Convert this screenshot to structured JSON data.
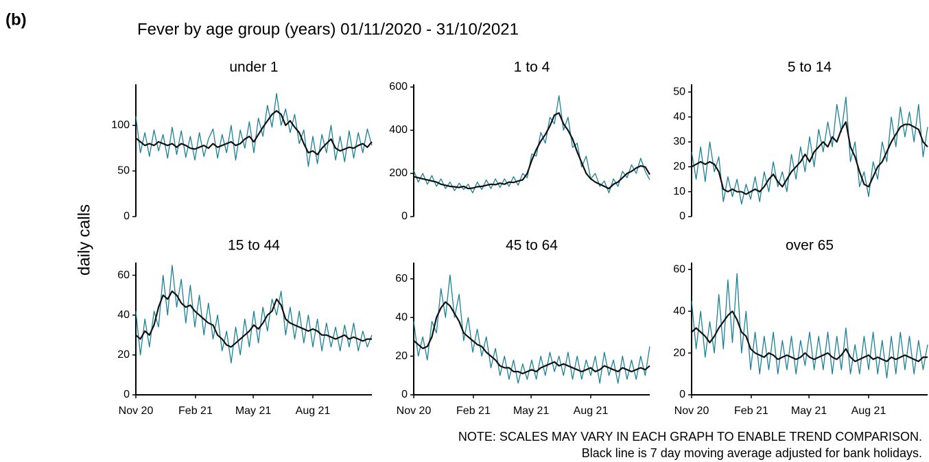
{
  "panel_label": "(b)",
  "title": "Fever by age group (years) 01/11/2020 - 31/10/2021",
  "ylabel": "daily calls",
  "notes": [
    "NOTE: SCALES MAY VARY IN EACH GRAPH TO ENABLE TREND COMPARISON.",
    "Black line is 7 day moving average adjusted for bank holidays."
  ],
  "chart_data": [
    {
      "type": "line",
      "title": "under 1",
      "xlim": [
        0,
        364
      ],
      "ylim": [
        0,
        142
      ],
      "yticks": [
        0,
        50,
        100
      ],
      "x": [
        0,
        7,
        14,
        21,
        28,
        35,
        42,
        49,
        56,
        63,
        70,
        77,
        84,
        91,
        98,
        105,
        112,
        119,
        126,
        133,
        140,
        147,
        154,
        161,
        168,
        175,
        182,
        189,
        196,
        203,
        210,
        217,
        224,
        231,
        238,
        245,
        252,
        259,
        266,
        273,
        280,
        287,
        294,
        301,
        308,
        315,
        322,
        329,
        336,
        343,
        350,
        357,
        364
      ],
      "series": [
        {
          "color": "#1b8096",
          "values": [
            110,
            70,
            92,
            66,
            95,
            72,
            90,
            64,
            98,
            68,
            94,
            65,
            88,
            62,
            92,
            66,
            85,
            96,
            64,
            90,
            70,
            100,
            62,
            95,
            75,
            104,
            70,
            108,
            88,
            122,
            98,
            135,
            100,
            118,
            92,
            112,
            80,
            95,
            55,
            88,
            58,
            90,
            70,
            100,
            62,
            88,
            60,
            94,
            64,
            92,
            70,
            96,
            78
          ]
        },
        {
          "color": "#111111",
          "values": [
            86,
            82,
            78,
            80,
            78,
            82,
            80,
            78,
            80,
            76,
            80,
            78,
            75,
            74,
            76,
            78,
            75,
            80,
            76,
            78,
            80,
            82,
            78,
            80,
            85,
            88,
            82,
            90,
            98,
            105,
            112,
            116,
            112,
            100,
            105,
            98,
            92,
            80,
            70,
            72,
            68,
            75,
            80,
            85,
            75,
            72,
            74,
            76,
            75,
            78,
            80,
            76,
            82
          ]
        }
      ]
    },
    {
      "type": "line",
      "title": "1 to 4",
      "xlim": [
        0,
        364
      ],
      "ylim": [
        0,
        600
      ],
      "yticks": [
        0,
        200,
        400,
        600
      ],
      "x": [
        0,
        7,
        14,
        21,
        28,
        35,
        42,
        49,
        56,
        63,
        70,
        77,
        84,
        91,
        98,
        105,
        112,
        119,
        126,
        133,
        140,
        147,
        154,
        161,
        168,
        175,
        182,
        189,
        196,
        203,
        210,
        217,
        224,
        231,
        238,
        245,
        252,
        259,
        266,
        273,
        280,
        287,
        294,
        301,
        308,
        315,
        322,
        329,
        336,
        343,
        350,
        357,
        364
      ],
      "series": [
        {
          "color": "#1b8096",
          "values": [
            215,
            160,
            200,
            150,
            190,
            140,
            175,
            130,
            160,
            120,
            155,
            125,
            150,
            110,
            160,
            125,
            170,
            130,
            175,
            135,
            175,
            140,
            185,
            145,
            200,
            180,
            290,
            280,
            390,
            340,
            460,
            430,
            560,
            400,
            460,
            320,
            340,
            230,
            280,
            175,
            200,
            140,
            165,
            110,
            175,
            140,
            210,
            180,
            240,
            200,
            270,
            210,
            170
          ]
        },
        {
          "color": "#111111",
          "values": [
            185,
            180,
            175,
            170,
            165,
            160,
            150,
            145,
            140,
            138,
            135,
            140,
            130,
            132,
            138,
            140,
            145,
            150,
            148,
            155,
            150,
            160,
            158,
            165,
            170,
            200,
            260,
            310,
            350,
            380,
            420,
            470,
            480,
            430,
            400,
            360,
            300,
            250,
            200,
            175,
            160,
            150,
            140,
            130,
            150,
            160,
            180,
            200,
            210,
            225,
            235,
            230,
            195
          ]
        }
      ]
    },
    {
      "type": "line",
      "title": "5 to 14",
      "xlim": [
        0,
        364
      ],
      "ylim": [
        0,
        52
      ],
      "yticks": [
        0,
        10,
        20,
        30,
        40,
        50
      ],
      "x": [
        0,
        7,
        14,
        21,
        28,
        35,
        42,
        49,
        56,
        63,
        70,
        77,
        84,
        91,
        98,
        105,
        112,
        119,
        126,
        133,
        140,
        147,
        154,
        161,
        168,
        175,
        182,
        189,
        196,
        203,
        210,
        217,
        224,
        231,
        238,
        245,
        252,
        259,
        266,
        273,
        280,
        287,
        294,
        301,
        308,
        315,
        322,
        329,
        336,
        343,
        350,
        357,
        364
      ],
      "series": [
        {
          "color": "#1b8096",
          "values": [
            26,
            15,
            28,
            14,
            30,
            18,
            24,
            6,
            16,
            8,
            15,
            5,
            13,
            7,
            16,
            6,
            18,
            10,
            22,
            12,
            18,
            10,
            25,
            15,
            28,
            18,
            32,
            20,
            35,
            26,
            38,
            28,
            45,
            34,
            48,
            22,
            30,
            12,
            18,
            8,
            22,
            15,
            30,
            22,
            40,
            28,
            44,
            32,
            42,
            30,
            45,
            24,
            36
          ]
        },
        {
          "color": "#111111",
          "values": [
            20,
            21,
            22,
            21,
            22,
            21,
            18,
            11,
            10,
            11,
            10,
            10,
            9,
            10,
            11,
            10,
            12,
            15,
            17,
            14,
            12,
            15,
            18,
            20,
            22,
            25,
            22,
            26,
            28,
            30,
            28,
            32,
            30,
            35,
            38,
            28,
            24,
            18,
            13,
            12,
            16,
            20,
            22,
            26,
            30,
            33,
            36,
            37,
            37,
            36,
            35,
            30,
            28
          ]
        }
      ]
    },
    {
      "type": "line",
      "title": "15 to 44",
      "xlim": [
        0,
        364
      ],
      "ylim": [
        0,
        65
      ],
      "yticks": [
        0,
        20,
        40,
        60
      ],
      "xticks": [
        {
          "value": 0,
          "label": "Nov 20"
        },
        {
          "value": 92,
          "label": "Feb 21"
        },
        {
          "value": 181,
          "label": "May 21"
        },
        {
          "value": 273,
          "label": "Aug 21"
        }
      ],
      "x": [
        0,
        7,
        14,
        21,
        28,
        35,
        42,
        49,
        56,
        63,
        70,
        77,
        84,
        91,
        98,
        105,
        112,
        119,
        126,
        133,
        140,
        147,
        154,
        161,
        168,
        175,
        182,
        189,
        196,
        203,
        210,
        217,
        224,
        231,
        238,
        245,
        252,
        259,
        266,
        273,
        280,
        287,
        294,
        301,
        308,
        315,
        322,
        329,
        336,
        343,
        350,
        357,
        364
      ],
      "series": [
        {
          "color": "#1b8096",
          "values": [
            42,
            20,
            38,
            24,
            42,
            34,
            60,
            40,
            65,
            44,
            58,
            36,
            55,
            34,
            50,
            30,
            46,
            28,
            40,
            22,
            32,
            16,
            34,
            20,
            38,
            24,
            42,
            26,
            44,
            32,
            48,
            40,
            52,
            30,
            44,
            28,
            42,
            26,
            40,
            24,
            38,
            22,
            36,
            24,
            34,
            22,
            35,
            24,
            36,
            22,
            32,
            24,
            30
          ]
        },
        {
          "color": "#111111",
          "values": [
            30,
            28,
            32,
            30,
            35,
            44,
            50,
            48,
            52,
            50,
            46,
            44,
            45,
            42,
            40,
            38,
            36,
            35,
            30,
            28,
            25,
            24,
            26,
            28,
            30,
            32,
            35,
            33,
            36,
            40,
            42,
            48,
            45,
            38,
            36,
            35,
            34,
            33,
            32,
            33,
            32,
            30,
            30,
            29,
            28,
            29,
            30,
            28,
            29,
            28,
            27,
            28,
            28
          ]
        }
      ]
    },
    {
      "type": "line",
      "title": "45 to 64",
      "xlim": [
        0,
        364
      ],
      "ylim": [
        0,
        67
      ],
      "yticks": [
        0,
        20,
        40,
        60
      ],
      "xticks": [
        {
          "value": 0,
          "label": "Nov 20"
        },
        {
          "value": 92,
          "label": "Feb 21"
        },
        {
          "value": 181,
          "label": "May 21"
        },
        {
          "value": 273,
          "label": "Aug 21"
        }
      ],
      "x": [
        0,
        7,
        14,
        21,
        28,
        35,
        42,
        49,
        56,
        63,
        70,
        77,
        84,
        91,
        98,
        105,
        112,
        119,
        126,
        133,
        140,
        147,
        154,
        161,
        168,
        175,
        182,
        189,
        196,
        203,
        210,
        217,
        224,
        231,
        238,
        245,
        252,
        259,
        266,
        273,
        280,
        287,
        294,
        301,
        308,
        315,
        322,
        329,
        336,
        343,
        350,
        357,
        364
      ],
      "series": [
        {
          "color": "#1b8096",
          "values": [
            38,
            20,
            30,
            18,
            38,
            32,
            55,
            40,
            62,
            40,
            52,
            28,
            40,
            22,
            34,
            20,
            30,
            14,
            24,
            10,
            20,
            8,
            18,
            6,
            16,
            8,
            18,
            8,
            20,
            10,
            22,
            12,
            20,
            10,
            22,
            8,
            20,
            8,
            18,
            10,
            20,
            6,
            22,
            10,
            18,
            6,
            20,
            8,
            18,
            8,
            20,
            10,
            25
          ]
        },
        {
          "color": "#111111",
          "values": [
            28,
            26,
            24,
            25,
            30,
            40,
            45,
            48,
            46,
            42,
            38,
            32,
            30,
            28,
            26,
            25,
            22,
            20,
            18,
            15,
            14,
            14,
            12,
            12,
            11,
            12,
            13,
            12,
            14,
            15,
            16,
            17,
            15,
            16,
            15,
            14,
            13,
            12,
            13,
            14,
            12,
            13,
            15,
            14,
            13,
            12,
            14,
            13,
            12,
            13,
            14,
            13,
            15
          ]
        }
      ]
    },
    {
      "type": "line",
      "title": "over 65",
      "xlim": [
        0,
        364
      ],
      "ylim": [
        0,
        62
      ],
      "yticks": [
        0,
        20,
        40,
        60
      ],
      "xticks": [
        {
          "value": 0,
          "label": "Nov 20"
        },
        {
          "value": 92,
          "label": "Feb 21"
        },
        {
          "value": 181,
          "label": "May 21"
        },
        {
          "value": 273,
          "label": "Aug 21"
        }
      ],
      "x": [
        0,
        7,
        14,
        21,
        28,
        35,
        42,
        49,
        56,
        63,
        70,
        77,
        84,
        91,
        98,
        105,
        112,
        119,
        126,
        133,
        140,
        147,
        154,
        161,
        168,
        175,
        182,
        189,
        196,
        203,
        210,
        217,
        224,
        231,
        238,
        245,
        252,
        259,
        266,
        273,
        280,
        287,
        294,
        301,
        308,
        315,
        322,
        329,
        336,
        343,
        350,
        357,
        364
      ],
      "series": [
        {
          "color": "#1b8096",
          "values": [
            45,
            22,
            40,
            18,
            35,
            20,
            48,
            22,
            55,
            25,
            58,
            20,
            40,
            12,
            30,
            10,
            28,
            12,
            30,
            10,
            26,
            12,
            28,
            10,
            26,
            14,
            30,
            12,
            28,
            12,
            30,
            10,
            28,
            12,
            32,
            10,
            24,
            10,
            28,
            12,
            30,
            10,
            26,
            8,
            28,
            10,
            30,
            12,
            28,
            10,
            26,
            12,
            24
          ]
        },
        {
          "color": "#111111",
          "values": [
            30,
            32,
            30,
            28,
            25,
            28,
            32,
            35,
            38,
            40,
            36,
            30,
            28,
            22,
            20,
            19,
            18,
            20,
            19,
            17,
            18,
            19,
            18,
            17,
            18,
            20,
            18,
            17,
            18,
            19,
            20,
            18,
            17,
            19,
            22,
            18,
            16,
            17,
            18,
            19,
            17,
            18,
            17,
            16,
            18,
            17,
            18,
            19,
            18,
            17,
            16,
            18,
            18
          ]
        }
      ]
    }
  ]
}
